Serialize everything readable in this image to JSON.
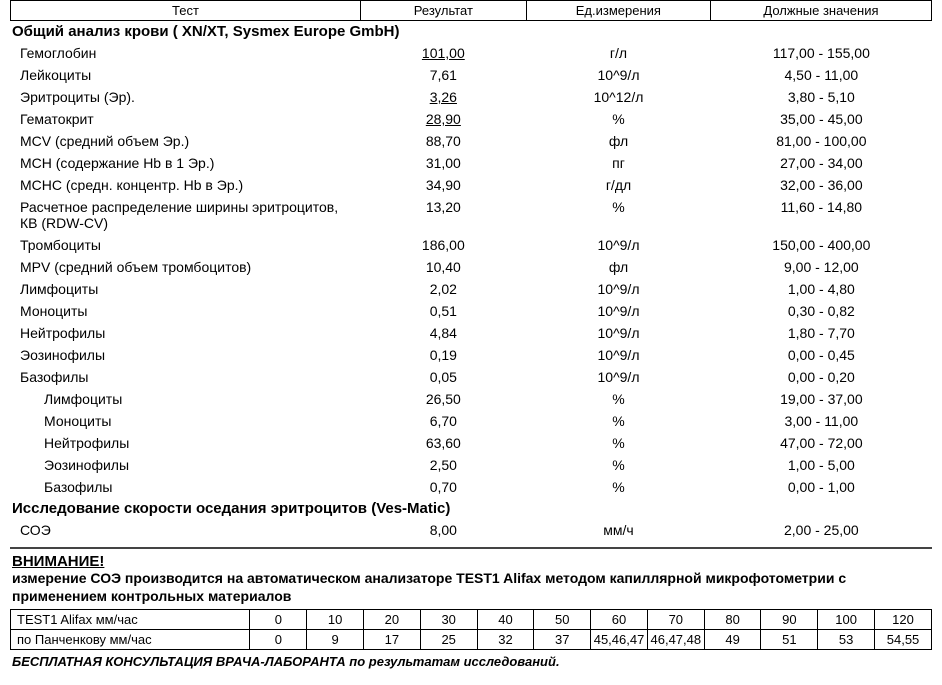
{
  "header": {
    "col_test": "Тест",
    "col_result": "Результат",
    "col_unit": "Ед.измерения",
    "col_ref": "Должные значения"
  },
  "groups": [
    {
      "title": "Общий анализ крови ( XN/XT, Sysmex Europe GmbH)",
      "rows": [
        {
          "name": "Гемоглобин",
          "result": "101,00",
          "flag": true,
          "unit": "г/л",
          "ref": "117,00 - 155,00"
        },
        {
          "name": "Лейкоциты",
          "result": "7,61",
          "flag": false,
          "unit": "10^9/л",
          "ref": "4,50 - 11,00"
        },
        {
          "name": "Эритроциты (Эр).",
          "result": "3,26",
          "flag": true,
          "unit": "10^12/л",
          "ref": "3,80 - 5,10"
        },
        {
          "name": "Гематокрит",
          "result": "28,90",
          "flag": true,
          "unit": "%",
          "ref": "35,00 - 45,00"
        },
        {
          "name": "MCV (средний объем Эр.)",
          "result": "88,70",
          "flag": false,
          "unit": "фл",
          "ref": "81,00 - 100,00"
        },
        {
          "name": "MCH (содержание Hb в 1 Эр.)",
          "result": "31,00",
          "flag": false,
          "unit": "пг",
          "ref": "27,00 - 34,00"
        },
        {
          "name": "MCHC (средн. концентр. Hb в Эр.)",
          "result": "34,90",
          "flag": false,
          "unit": "г/дл",
          "ref": "32,00 - 36,00"
        },
        {
          "name": "Расчетное распределение ширины эритроцитов, КВ (RDW-CV)",
          "result": "13,20",
          "flag": false,
          "unit": "%",
          "ref": "11,60 - 14,80"
        },
        {
          "name": "Тромбоциты",
          "result": "186,00",
          "flag": false,
          "unit": "10^9/л",
          "ref": "150,00 - 400,00"
        },
        {
          "name": "MPV (средний объем тромбоцитов)",
          "result": "10,40",
          "flag": false,
          "unit": "фл",
          "ref": "9,00 - 12,00"
        },
        {
          "name": "Лимфоциты",
          "result": "2,02",
          "flag": false,
          "unit": "10^9/л",
          "ref": "1,00 - 4,80"
        },
        {
          "name": "Моноциты",
          "result": "0,51",
          "flag": false,
          "unit": "10^9/л",
          "ref": "0,30 - 0,82"
        },
        {
          "name": "Нейтрофилы",
          "result": "4,84",
          "flag": false,
          "unit": "10^9/л",
          "ref": "1,80 - 7,70"
        },
        {
          "name": "Эозинофилы",
          "result": "0,19",
          "flag": false,
          "unit": "10^9/л",
          "ref": "0,00 - 0,45"
        },
        {
          "name": "Базофилы",
          "result": "0,05",
          "flag": false,
          "unit": "10^9/л",
          "ref": "0,00 - 0,20"
        },
        {
          "name": "Лимфоциты",
          "result": "26,50",
          "flag": false,
          "unit": "%",
          "ref": "19,00 - 37,00",
          "indent": true
        },
        {
          "name": "Моноциты",
          "result": "6,70",
          "flag": false,
          "unit": "%",
          "ref": "3,00 - 11,00",
          "indent": true
        },
        {
          "name": "Нейтрофилы",
          "result": "63,60",
          "flag": false,
          "unit": "%",
          "ref": "47,00 - 72,00",
          "indent": true
        },
        {
          "name": "Эозинофилы",
          "result": "2,50",
          "flag": false,
          "unit": "%",
          "ref": "1,00 - 5,00",
          "indent": true
        },
        {
          "name": "Базофилы",
          "result": "0,70",
          "flag": false,
          "unit": "%",
          "ref": "0,00 - 1,00",
          "indent": true
        }
      ]
    },
    {
      "title": "Исследование скорости оседания эритроцитов (Ves-Matic)",
      "rows": [
        {
          "name": "СОЭ",
          "result": "8,00",
          "flag": false,
          "unit": "мм/ч",
          "ref": "2,00 - 25,00"
        }
      ]
    }
  ],
  "attention": {
    "heading": "ВНИМАНИЕ!",
    "text": "измерение СОЭ производится на автоматическом анализаторе TEST1 Alifax методом капиллярной микрофотометрии с применением контрольных материалов"
  },
  "conversion": {
    "row1_label": "TEST1 Alifax мм/час",
    "row1": [
      "0",
      "10",
      "20",
      "30",
      "40",
      "50",
      "60",
      "70",
      "80",
      "90",
      "100",
      "120"
    ],
    "row2_label": "по Панченкову мм/час",
    "row2": [
      "0",
      "9",
      "17",
      "25",
      "32",
      "37",
      "45,46,47",
      "46,47,48",
      "49",
      "51",
      "53",
      "54,55"
    ]
  },
  "consult": "БЕСПЛАТНАЯ КОНСУЛЬТАЦИЯ ВРАЧА-ЛАБОРАНТА по результатам исследований."
}
